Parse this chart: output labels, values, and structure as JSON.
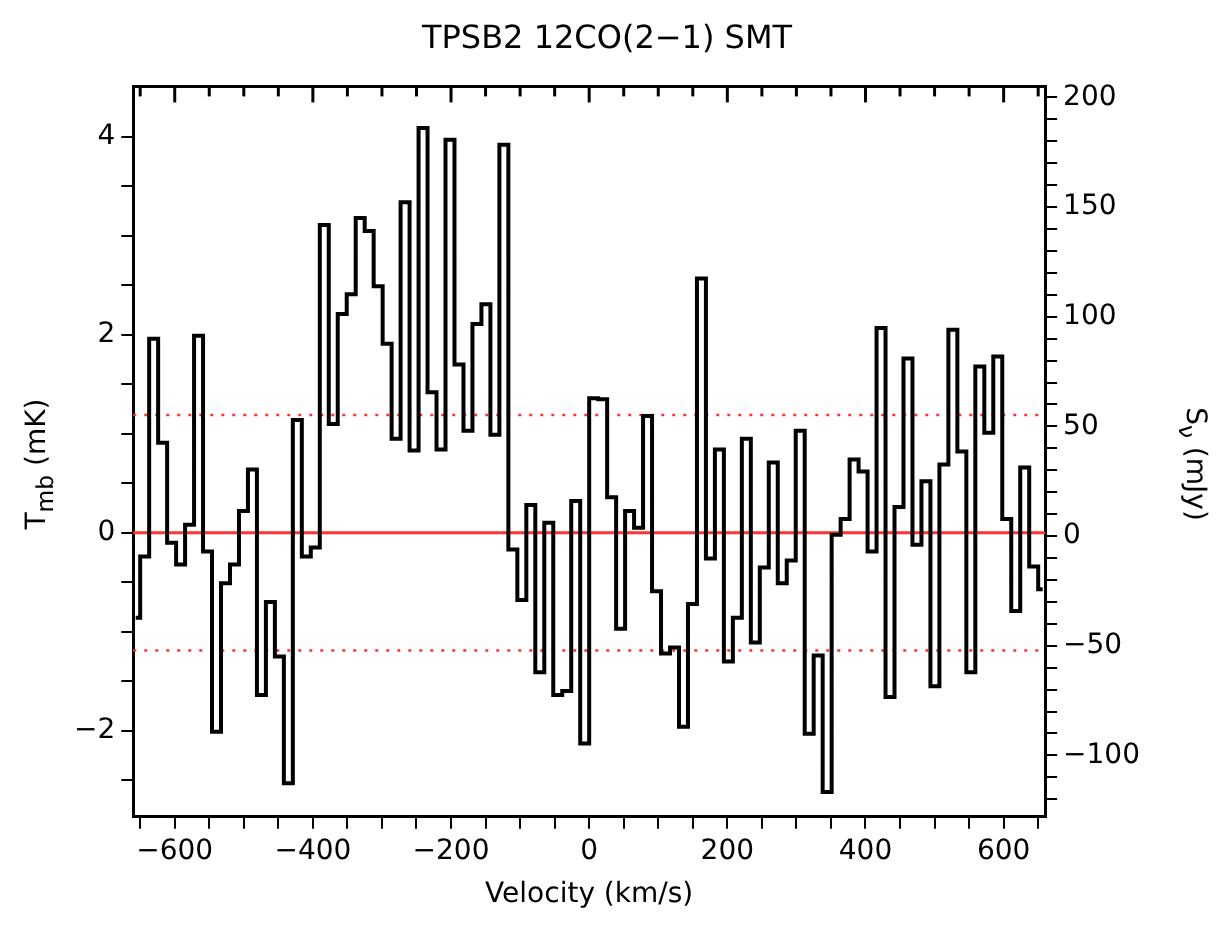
{
  "chart_data": {
    "type": "step",
    "title": "TPSB2 12CO(2−1) SMT",
    "xlabel": "Velocity (km/s)",
    "ylabel": "T$_{mb}$ (mK)",
    "y2label": "S$_{ν}$ (mJy)",
    "x": [
      -656.5,
      -643.5,
      -630.5,
      -617.5,
      -604.5,
      -591.5,
      -578.5,
      -565.5,
      -552.5,
      -539.5,
      -526.5,
      -513.5,
      -500.5,
      -487.5,
      -474.5,
      -461.5,
      -448.5,
      -435.5,
      -422.5,
      -409.5,
      -396.5,
      -383.5,
      -370.5,
      -357.5,
      -344.5,
      -331.5,
      -318.5,
      -305.5,
      -292.5,
      -279.5,
      -266.5,
      -253.5,
      -240.5,
      -227.5,
      -214.5,
      -201.5,
      -188.5,
      -175.5,
      -162.5,
      -149.5,
      -136.5,
      -123.5,
      -110.5,
      -97.5,
      -84.5,
      -71.5,
      -58.5,
      -45.5,
      -32.5,
      -19.5,
      -6.5,
      6.5,
      19.5,
      32.5,
      45.5,
      58.5,
      71.5,
      84.5,
      97.5,
      110.5,
      123.5,
      136.5,
      149.5,
      162.5,
      175.5,
      188.5,
      201.5,
      214.5,
      227.5,
      240.5,
      253.5,
      266.5,
      279.5,
      292.5,
      305.5,
      318.5,
      331.5,
      344.5,
      357.5,
      370.5,
      383.5,
      396.5,
      409.5,
      422.5,
      435.5,
      448.5,
      461.5,
      474.5,
      487.5,
      500.5,
      513.5,
      526.5,
      539.5,
      552.5,
      565.5,
      578.5,
      591.5,
      604.5,
      617.5,
      630.5,
      643.5,
      656.5
    ],
    "series": [
      {
        "color": "#000000",
        "values": [
          -0.86,
          -0.24,
          1.96,
          0.91,
          -0.1,
          -0.32,
          0.08,
          1.99,
          -0.19,
          -2.01,
          -0.51,
          -0.32,
          0.22,
          0.64,
          -1.64,
          -0.7,
          -1.25,
          -2.53,
          1.14,
          -0.24,
          -0.15,
          3.11,
          1.1,
          2.21,
          2.41,
          3.18,
          3.05,
          2.49,
          1.91,
          0.95,
          3.34,
          0.83,
          4.09,
          1.42,
          0.84,
          3.97,
          1.7,
          1.03,
          2.11,
          2.31,
          0.99,
          3.92,
          -0.17,
          -0.68,
          0.28,
          -1.41,
          0.1,
          -1.64,
          -1.6,
          0.32,
          -2.13,
          1.36,
          1.35,
          0.36,
          -0.97,
          0.22,
          0.05,
          1.18,
          -0.59,
          -1.22,
          -1.16,
          -1.96,
          -0.72,
          2.57,
          -0.26,
          0.84,
          -1.3,
          -0.86,
          0.95,
          -1.11,
          -0.35,
          0.71,
          -0.51,
          -0.28,
          1.03,
          -2.03,
          -1.24,
          -2.62,
          -0.02,
          0.14,
          0.74,
          0.62,
          -0.19,
          2.07,
          -1.66,
          0.26,
          1.76,
          -0.12,
          0.52,
          -1.55,
          0.69,
          2.05,
          0.82,
          -1.41,
          1.68,
          1.01,
          1.78,
          0.14,
          -0.79,
          0.66,
          -0.34,
          -0.57
        ]
      }
    ],
    "xlim": [
      -660,
      660
    ],
    "xticks": [
      {
        "value": -650,
        "label": null
      },
      -600,
      {
        "value": -550,
        "label": null
      },
      {
        "value": -500,
        "label": null
      },
      {
        "value": -450,
        "label": null
      },
      -400,
      {
        "value": -350,
        "label": null
      },
      {
        "value": -300,
        "label": null
      },
      {
        "value": -250,
        "label": null
      },
      -200,
      {
        "value": -150,
        "label": null
      },
      {
        "value": -100,
        "label": null
      },
      {
        "value": -50,
        "label": null
      },
      0,
      {
        "value": 50,
        "label": null
      },
      {
        "value": 100,
        "label": null
      },
      {
        "value": 150,
        "label": null
      },
      200,
      {
        "value": 250,
        "label": null
      },
      {
        "value": 300,
        "label": null
      },
      {
        "value": 350,
        "label": null
      },
      400,
      {
        "value": 450,
        "label": null
      },
      {
        "value": 500,
        "label": null
      },
      {
        "value": 550,
        "label": null
      },
      600,
      {
        "value": 650,
        "label": null
      }
    ],
    "ylim": [
      -2.87,
      4.51
    ],
    "yticks": [
      {
        "value": -2.5,
        "label": null
      },
      -2,
      {
        "value": -1.5,
        "label": null
      },
      {
        "value": -1,
        "label": null
      },
      {
        "value": -0.5,
        "label": null
      },
      0,
      {
        "value": 0.5,
        "label": null
      },
      {
        "value": 1,
        "label": null
      },
      {
        "value": 1.5,
        "label": null
      },
      2,
      {
        "value": 2.5,
        "label": null
      },
      {
        "value": 3,
        "label": null
      },
      {
        "value": 3.5,
        "label": null
      },
      4
    ],
    "y2lim": [
      -128,
      205
    ],
    "y2ticks": [
      {
        "value": -120,
        "label": null
      },
      {
        "value": -110,
        "label": null
      },
      -100,
      {
        "value": -90,
        "label": null
      },
      {
        "value": -80,
        "label": null
      },
      {
        "value": -70,
        "label": null
      },
      {
        "value": -60,
        "label": null
      },
      -50,
      {
        "value": -40,
        "label": null
      },
      {
        "value": -30,
        "label": null
      },
      {
        "value": -20,
        "label": null
      },
      {
        "value": -10,
        "label": null
      },
      0,
      {
        "value": 10,
        "label": null
      },
      {
        "value": 20,
        "label": null
      },
      {
        "value": 30,
        "label": null
      },
      {
        "value": 40,
        "label": null
      },
      50,
      {
        "value": 60,
        "label": null
      },
      {
        "value": 70,
        "label": null
      },
      {
        "value": 80,
        "label": null
      },
      {
        "value": 90,
        "label": null
      },
      100,
      {
        "value": 110,
        "label": null
      },
      {
        "value": 120,
        "label": null
      },
      {
        "value": 130,
        "label": null
      },
      {
        "value": 140,
        "label": null
      },
      150,
      {
        "value": 160,
        "label": null
      },
      {
        "value": 170,
        "label": null
      },
      {
        "value": 180,
        "label": null
      },
      {
        "value": 190,
        "label": null
      },
      200
    ],
    "ref_lines": [
      {
        "axis": "y",
        "value": 0,
        "color": "#ff3333",
        "line_style": "solid"
      },
      {
        "axis": "y",
        "value": 1.19,
        "color": "#ff3333",
        "line_style": "dotted"
      },
      {
        "axis": "y",
        "value": -1.19,
        "color": "#ff3333",
        "line_style": "dotted"
      }
    ],
    "marker": "none",
    "legend": false,
    "grid": false
  }
}
